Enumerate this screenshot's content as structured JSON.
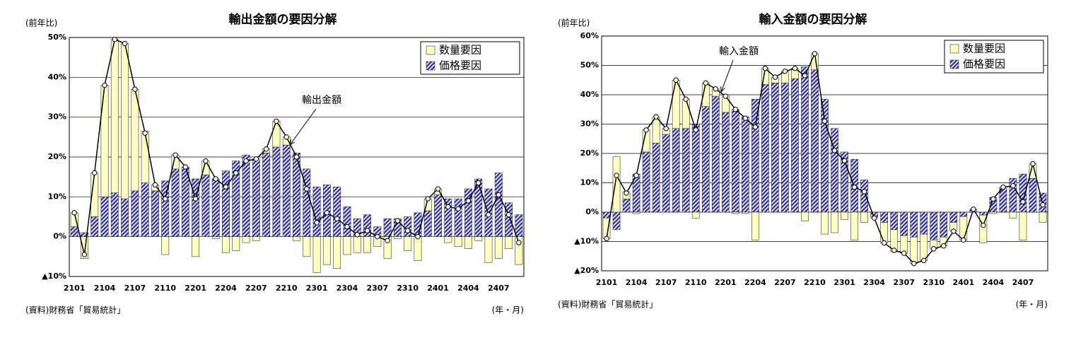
{
  "chart_data": [
    {
      "type": "stacked-bar-line",
      "title": "輸出金額の要因分解",
      "y_label": "(前年比)",
      "source": "(資料)財務省「貿易統計」",
      "x_label": "(年・月)",
      "categories": [
        "2101",
        null,
        null,
        "2104",
        null,
        null,
        "2107",
        null,
        null,
        "2110",
        null,
        null,
        "2201",
        null,
        null,
        "2204",
        null,
        null,
        "2207",
        null,
        null,
        "2210",
        null,
        null,
        "2301",
        null,
        null,
        "2304",
        null,
        null,
        "2307",
        null,
        null,
        "2310",
        null,
        null,
        "2401",
        null,
        null,
        "2404",
        null,
        null,
        "2407",
        null,
        null
      ],
      "series": [
        {
          "name": "数量要因",
          "kind": "bar",
          "color": "#ffffc0",
          "values": [
            3.5,
            -5.5,
            11,
            28,
            38.5,
            39,
            25.5,
            13,
            1.5,
            -4.5,
            3.5,
            0,
            -5,
            3.5,
            -0.5,
            -4,
            -3.5,
            -1.5,
            -1,
            1,
            6.5,
            2,
            -1,
            -5,
            -9,
            -7,
            -8,
            -4.5,
            -4,
            -4,
            -2.5,
            -5.5,
            -0.5,
            -3.5,
            -6,
            3,
            1.5,
            -1.5,
            -2.5,
            -3,
            -1,
            -6.5,
            -5.5,
            -3,
            -7
          ]
        },
        {
          "name": "価格要因",
          "kind": "bar",
          "pattern": "hatch",
          "color": "#3333aa",
          "values": [
            2.5,
            1,
            5,
            10,
            11,
            9.5,
            11.5,
            13.5,
            11.5,
            14,
            17,
            17.5,
            14.5,
            15.5,
            14.5,
            16.5,
            19,
            20.5,
            19.5,
            21,
            22.5,
            23,
            21,
            17,
            12.5,
            13,
            12.5,
            7.5,
            4.5,
            5.5,
            2.5,
            4.5,
            4.5,
            5,
            6,
            6.5,
            10.5,
            9.5,
            9.5,
            12,
            14.5,
            12,
            16,
            8.5,
            5.5
          ]
        },
        {
          "name": "輸出金額",
          "kind": "line",
          "color": "#000000",
          "values": [
            6,
            -4.5,
            16,
            38,
            49.5,
            48.5,
            37,
            26,
            13,
            9.5,
            20.5,
            17.5,
            9.5,
            19,
            14.5,
            12.5,
            16,
            19,
            19.5,
            22,
            29,
            25,
            20,
            12,
            3.5,
            6,
            4.5,
            2.5,
            0.5,
            1.5,
            0,
            -1,
            4,
            1.5,
            0,
            9.5,
            12,
            7.5,
            7,
            9,
            13.5,
            5.5,
            10.5,
            5.5,
            -1.5
          ]
        }
      ],
      "ylim": [
        -10,
        50
      ],
      "yticks": [
        {
          "value": -10,
          "label": "▲10%"
        },
        {
          "value": 0,
          "label": "0%"
        },
        {
          "value": 10,
          "label": "10%"
        },
        {
          "value": 20,
          "label": "20%"
        },
        {
          "value": 30,
          "label": "30%"
        },
        {
          "value": 40,
          "label": "40%"
        },
        {
          "value": 50,
          "label": "50%"
        }
      ],
      "grid": true,
      "legend": "upper right"
    },
    {
      "type": "stacked-bar-line",
      "title": "輸入金額の要因分解",
      "y_label": "(前年比)",
      "source": "(資料)財務省「貿易統計」",
      "x_label": "(年・月)",
      "categories": [
        "2101",
        null,
        null,
        "2104",
        null,
        null,
        "2107",
        null,
        null,
        "2110",
        null,
        null,
        "2201",
        null,
        null,
        "2204",
        null,
        null,
        "2207",
        null,
        null,
        "2210",
        null,
        null,
        "2301",
        null,
        null,
        "2304",
        null,
        null,
        "2307",
        null,
        null,
        "2310",
        null,
        null,
        "2401",
        null,
        null,
        "2404",
        null,
        null,
        "2407",
        null,
        null
      ],
      "series": [
        {
          "name": "数量要因",
          "kind": "bar",
          "color": "#ffffc0",
          "values": [
            -7,
            19,
            2.5,
            -0.5,
            7.5,
            9,
            2,
            16.5,
            10,
            -2,
            8,
            2.5,
            6,
            -0.5,
            -0.5,
            -9.5,
            5.5,
            2,
            4,
            3.5,
            -3,
            5.5,
            -7.5,
            -7,
            -2.5,
            -9.5,
            -3.5,
            -0.5,
            -7,
            -7.5,
            -6,
            -9,
            -9,
            -3,
            -3,
            -3,
            -8,
            0,
            -9.5,
            -0.5,
            0.5,
            -2,
            -9.5,
            5,
            -3.5
          ]
        },
        {
          "name": "価格要因",
          "kind": "bar",
          "pattern": "hatch",
          "color": "#3333aa",
          "values": [
            -2,
            -6,
            4.5,
            13,
            20.5,
            23.5,
            26.5,
            28.5,
            28.5,
            30,
            36,
            39.5,
            34,
            35,
            32.5,
            38.5,
            43.5,
            44,
            44,
            45.5,
            49.5,
            48.5,
            38.5,
            28.5,
            20.5,
            18,
            11,
            -1.5,
            -3.5,
            -6,
            -8,
            -8.5,
            -7.5,
            -9.5,
            -8.5,
            -3.5,
            -1.5,
            1,
            -1,
            5,
            8,
            11.5,
            13,
            11.5,
            6.5
          ]
        },
        {
          "name": "輸入金額",
          "kind": "line",
          "color": "#000000",
          "values": [
            -9,
            12.5,
            6.5,
            12.5,
            28,
            32.5,
            28.5,
            45,
            38.5,
            28,
            44,
            42,
            39.5,
            35,
            32,
            29,
            49,
            46,
            48,
            49,
            46.5,
            54,
            31,
            21,
            17.5,
            8.5,
            7,
            -2,
            -10.5,
            -13,
            -14,
            -17.5,
            -16.5,
            -12.5,
            -11.5,
            -6.5,
            -9.5,
            1,
            -4.5,
            4.5,
            8.5,
            9,
            3.5,
            16.5,
            2.5
          ]
        }
      ],
      "ylim": [
        -20,
        60
      ],
      "yticks": [
        {
          "value": -20,
          "label": "▲20%"
        },
        {
          "value": -10,
          "label": "▲10%"
        },
        {
          "value": 0,
          "label": "0%"
        },
        {
          "value": 10,
          "label": "10%"
        },
        {
          "value": 20,
          "label": "20%"
        },
        {
          "value": 30,
          "label": "30%"
        },
        {
          "value": 40,
          "label": "40%"
        },
        {
          "value": 50,
          "label": "50%"
        },
        {
          "value": 60,
          "label": "60%"
        }
      ],
      "grid": true,
      "legend": "upper right"
    }
  ]
}
